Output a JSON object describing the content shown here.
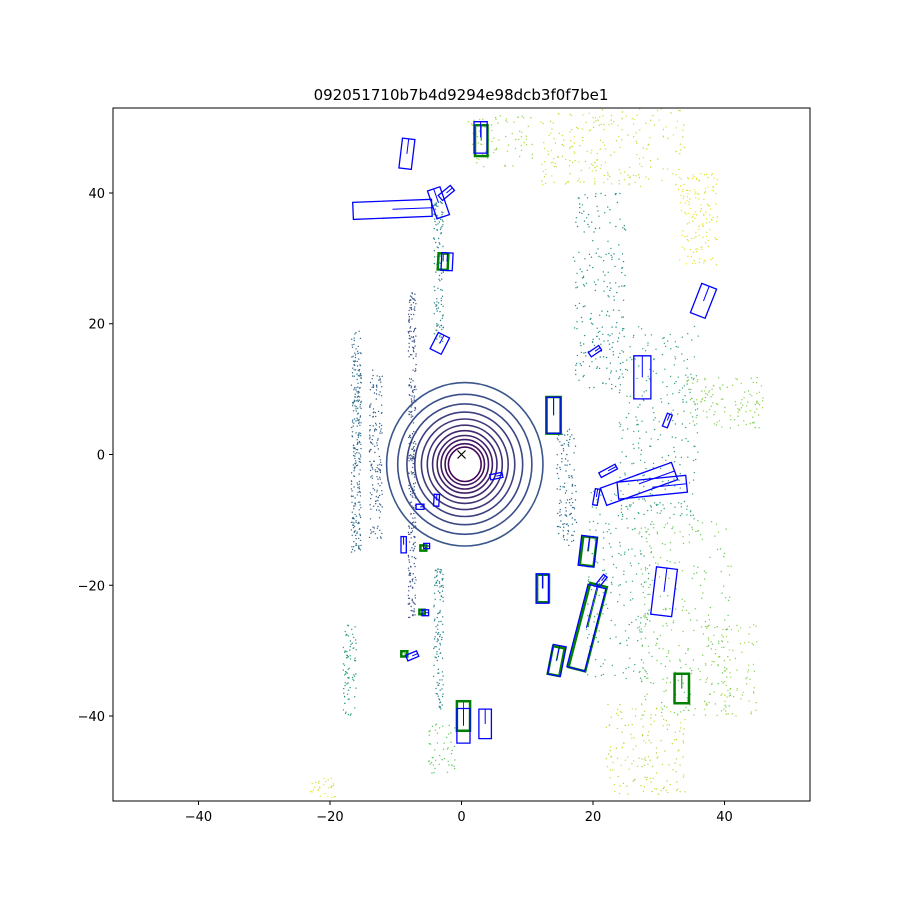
{
  "chart_data": {
    "type": "scatter",
    "title": "092051710b7b4d9294e98dcb3f0f7be1",
    "xlabel": "",
    "ylabel": "",
    "xlim": [
      -53,
      53
    ],
    "ylim": [
      -53,
      53
    ],
    "xticks": [
      -40,
      -20,
      0,
      20,
      40
    ],
    "yticks": [
      -40,
      -20,
      0,
      20,
      40
    ],
    "grid": false,
    "legend": "none",
    "colors": {
      "ground_truth_box": "#008000",
      "prediction_box": "#0000ff",
      "ego_marker": "#000000",
      "point_colormap": [
        "#440154",
        "#3b528b",
        "#21918c",
        "#5ec962",
        "#fde725"
      ]
    },
    "ego_position": [
      0,
      0
    ],
    "rings": {
      "description_free": true,
      "radii": [
        2.5,
        3.0,
        3.6,
        4.2,
        4.9,
        5.7,
        6.6,
        7.6,
        8.8,
        10.2,
        11.9
      ]
    },
    "point_clusters": [
      {
        "cx": -16,
        "cy": 2,
        "w": 1.5,
        "h": 34,
        "n": 260,
        "level": 0.35
      },
      {
        "cx": -13,
        "cy": 0,
        "w": 2.0,
        "h": 26,
        "n": 160,
        "level": 0.3
      },
      {
        "cx": -7.5,
        "cy": 12,
        "w": 1.2,
        "h": 26,
        "n": 150,
        "level": 0.25
      },
      {
        "cx": -7.5,
        "cy": -12,
        "w": 1.2,
        "h": 26,
        "n": 150,
        "level": 0.25
      },
      {
        "cx": -3.5,
        "cy": 28,
        "w": 1.5,
        "h": 22,
        "n": 120,
        "level": 0.45
      },
      {
        "cx": -3.5,
        "cy": -28,
        "w": 1.5,
        "h": 22,
        "n": 120,
        "level": 0.45
      },
      {
        "cx": 16,
        "cy": -5,
        "w": 3,
        "h": 18,
        "n": 120,
        "level": 0.35
      },
      {
        "cx": 21,
        "cy": 25,
        "w": 8,
        "h": 30,
        "n": 220,
        "level": 0.5
      },
      {
        "cx": 30,
        "cy": 5,
        "w": 12,
        "h": 30,
        "n": 260,
        "level": 0.58
      },
      {
        "cx": 24,
        "cy": -20,
        "w": 10,
        "h": 30,
        "n": 200,
        "level": 0.6
      },
      {
        "cx": 34,
        "cy": -25,
        "w": 14,
        "h": 30,
        "n": 260,
        "level": 0.78
      },
      {
        "cx": 40,
        "cy": 8,
        "w": 12,
        "h": 8,
        "n": 120,
        "level": 0.82
      },
      {
        "cx": 23,
        "cy": 47,
        "w": 22,
        "h": 12,
        "n": 220,
        "level": 0.92
      },
      {
        "cx": 6,
        "cy": 48,
        "w": 10,
        "h": 8,
        "n": 80,
        "level": 0.85
      },
      {
        "cx": 36,
        "cy": 36,
        "w": 6,
        "h": 14,
        "n": 140,
        "level": 0.96
      },
      {
        "cx": 28,
        "cy": -45,
        "w": 12,
        "h": 14,
        "n": 160,
        "level": 0.9
      },
      {
        "cx": 41,
        "cy": -33,
        "w": 8,
        "h": 14,
        "n": 100,
        "level": 0.85
      },
      {
        "cx": -17,
        "cy": -33,
        "w": 2,
        "h": 14,
        "n": 80,
        "level": 0.55
      },
      {
        "cx": -3,
        "cy": -45,
        "w": 4,
        "h": 8,
        "n": 50,
        "level": 0.75
      },
      {
        "cx": -21,
        "cy": -51,
        "w": 4,
        "h": 3,
        "n": 30,
        "level": 0.95
      }
    ],
    "boxes_prediction": [
      {
        "cx": -8.3,
        "cy": 46.0,
        "w": 1.9,
        "l": 4.6,
        "yaw": 1.45
      },
      {
        "cx": 2.9,
        "cy": 48.5,
        "w": 2.0,
        "l": 4.8,
        "yaw": 1.57
      },
      {
        "cx": -10.5,
        "cy": 37.5,
        "w": 2.6,
        "l": 12.0,
        "yaw": 0.04
      },
      {
        "cx": -3.5,
        "cy": 38.5,
        "w": 2.0,
        "l": 4.5,
        "yaw": 1.9
      },
      {
        "cx": -2.3,
        "cy": 40.0,
        "w": 1.0,
        "l": 2.4,
        "yaw": 0.7
      },
      {
        "cx": -2.2,
        "cy": 29.5,
        "w": 1.7,
        "l": 2.7,
        "yaw": 1.52
      },
      {
        "cx": 36.8,
        "cy": 23.5,
        "w": 2.4,
        "l": 4.8,
        "yaw": 1.2
      },
      {
        "cx": -3.3,
        "cy": 17.0,
        "w": 1.9,
        "l": 2.8,
        "yaw": 1.1
      },
      {
        "cx": 20.3,
        "cy": 15.8,
        "w": 0.8,
        "l": 1.9,
        "yaw": 0.6
      },
      {
        "cx": 27.5,
        "cy": 11.8,
        "w": 2.6,
        "l": 6.6,
        "yaw": 1.57
      },
      {
        "cx": 31.3,
        "cy": 5.2,
        "w": 0.8,
        "l": 2.1,
        "yaw": 1.2
      },
      {
        "cx": 14.0,
        "cy": 6.0,
        "w": 2.0,
        "l": 5.5,
        "yaw": 1.57
      },
      {
        "cx": 27.0,
        "cy": -4.5,
        "w": 2.8,
        "l": 11.5,
        "yaw": 0.35
      },
      {
        "cx": 29.0,
        "cy": -5.0,
        "w": 2.6,
        "l": 10.5,
        "yaw": 0.1
      },
      {
        "cx": 22.3,
        "cy": -2.5,
        "w": 0.8,
        "l": 2.8,
        "yaw": 0.5
      },
      {
        "cx": 20.5,
        "cy": -6.5,
        "w": 0.7,
        "l": 2.5,
        "yaw": 1.4
      },
      {
        "cx": 5.3,
        "cy": -3.3,
        "w": 0.8,
        "l": 1.9,
        "yaw": 0.2
      },
      {
        "cx": -3.8,
        "cy": -7.0,
        "w": 0.8,
        "l": 1.8,
        "yaw": 1.5
      },
      {
        "cx": -6.3,
        "cy": -8.0,
        "w": 0.8,
        "l": 1.2,
        "yaw": 0
      },
      {
        "cx": -8.8,
        "cy": -13.8,
        "w": 0.8,
        "l": 2.5,
        "yaw": 1.57
      },
      {
        "cx": -5.3,
        "cy": -14.0,
        "w": 0.8,
        "l": 0.9,
        "yaw": 0
      },
      {
        "cx": 19.2,
        "cy": -14.8,
        "w": 2.4,
        "l": 4.6,
        "yaw": 1.45
      },
      {
        "cx": 21.3,
        "cy": -19.3,
        "w": 0.7,
        "l": 1.9,
        "yaw": 0.9
      },
      {
        "cx": 30.8,
        "cy": -21.0,
        "w": 3.2,
        "l": 7.3,
        "yaw": 1.45
      },
      {
        "cx": 12.3,
        "cy": -20.5,
        "w": 1.9,
        "l": 4.5,
        "yaw": 1.57
      },
      {
        "cx": 19.0,
        "cy": -26.5,
        "w": 2.8,
        "l": 13.0,
        "yaw": 1.32
      },
      {
        "cx": -5.5,
        "cy": -24.2,
        "w": 0.9,
        "l": 1.0,
        "yaw": 0
      },
      {
        "cx": 14.5,
        "cy": -31.5,
        "w": 2.0,
        "l": 4.6,
        "yaw": 1.38
      },
      {
        "cx": -7.5,
        "cy": -30.8,
        "w": 0.9,
        "l": 1.8,
        "yaw": 0.4
      },
      {
        "cx": 0.3,
        "cy": -41.5,
        "w": 2.0,
        "l": 5.3,
        "yaw": 1.57
      },
      {
        "cx": 3.6,
        "cy": -41.2,
        "w": 1.9,
        "l": 4.5,
        "yaw": 1.57
      }
    ],
    "boxes_ground_truth": [
      {
        "cx": 3.0,
        "cy": 48.0,
        "w": 1.9,
        "l": 4.7,
        "yaw": 1.57
      },
      {
        "cx": 14.0,
        "cy": 6.0,
        "w": 2.2,
        "l": 5.6,
        "yaw": 1.57
      },
      {
        "cx": -2.8,
        "cy": 29.5,
        "w": 1.5,
        "l": 2.5,
        "yaw": 1.52
      },
      {
        "cx": 19.3,
        "cy": -14.8,
        "w": 2.1,
        "l": 4.4,
        "yaw": 1.45
      },
      {
        "cx": 12.4,
        "cy": -20.5,
        "w": 1.8,
        "l": 4.2,
        "yaw": 1.57
      },
      {
        "cx": 19.2,
        "cy": -26.4,
        "w": 2.6,
        "l": 13.3,
        "yaw": 1.32
      },
      {
        "cx": 14.4,
        "cy": -31.6,
        "w": 1.8,
        "l": 4.3,
        "yaw": 1.38
      },
      {
        "cx": 33.5,
        "cy": -35.8,
        "w": 2.2,
        "l": 4.5,
        "yaw": 1.57
      },
      {
        "cx": 0.3,
        "cy": -40.0,
        "w": 2.0,
        "l": 4.5,
        "yaw": 1.57
      },
      {
        "cx": -5.8,
        "cy": -14.3,
        "w": 0.8,
        "l": 0.9,
        "yaw": 0
      },
      {
        "cx": -8.7,
        "cy": -30.5,
        "w": 0.8,
        "l": 0.9,
        "yaw": 0
      },
      {
        "cx": -6.0,
        "cy": -24.1,
        "w": 0.7,
        "l": 0.8,
        "yaw": 0
      }
    ]
  }
}
